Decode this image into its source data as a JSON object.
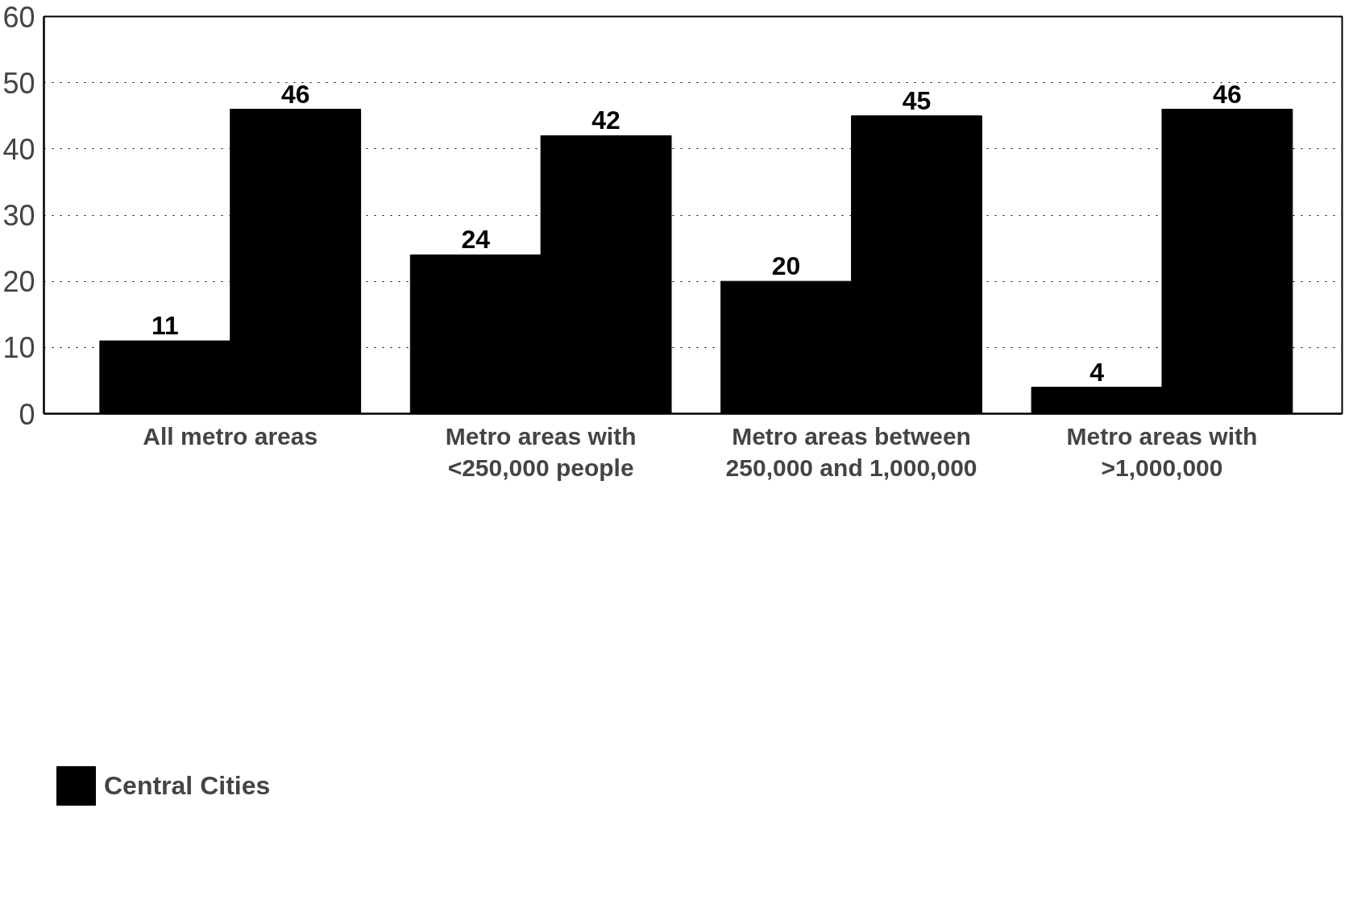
{
  "chart_data": {
    "type": "bar",
    "categories": [
      "All metro areas",
      "Metro areas with\n<250,000 people",
      "Metro areas between\n250,000 and 1,000,000",
      "Metro areas with\n>1,000,000"
    ],
    "series": [
      {
        "name": "Central Cities",
        "color": "#000000",
        "values": [
          11,
          24,
          20,
          4
        ]
      },
      {
        "color": "#000000",
        "values": [
          46,
          42,
          45,
          46
        ]
      }
    ],
    "ylim": [
      0,
      60
    ],
    "yticks": [
      0,
      10,
      20,
      30,
      40,
      50,
      60
    ],
    "grid": "y",
    "legend": "bottom left",
    "data_labels": true
  }
}
